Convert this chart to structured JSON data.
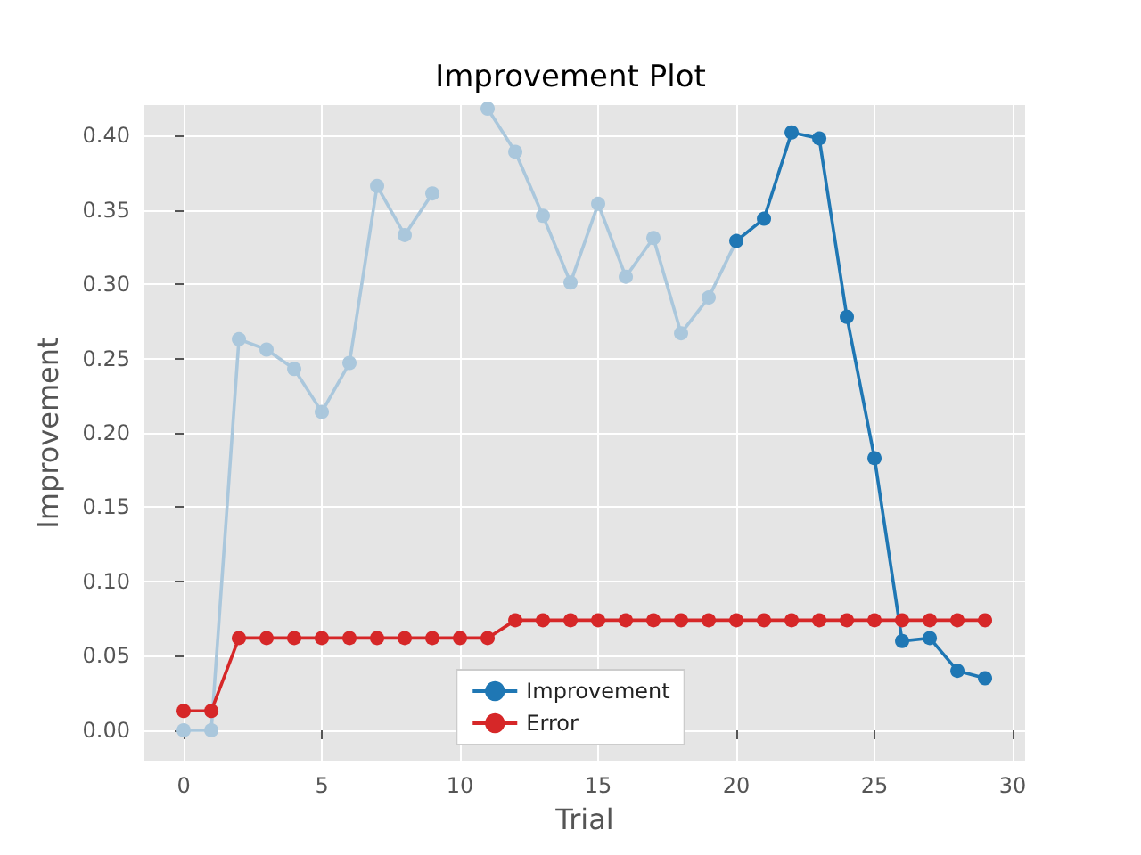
{
  "chart_data": {
    "type": "line",
    "title": "Improvement Plot",
    "xlabel": "Trial",
    "ylabel": "Improvement",
    "series": [
      {
        "color": "#aac7dc",
        "x": [
          0,
          1,
          2,
          3,
          4,
          5,
          6,
          7,
          8,
          9,
          10,
          11,
          12,
          13,
          14,
          15,
          16,
          17,
          18,
          19,
          20
        ],
        "values": [
          0.0,
          0.0,
          0.263,
          0.256,
          0.243,
          0.214,
          0.247,
          0.366,
          0.333,
          0.361,
          null,
          0.418,
          0.389,
          0.346,
          0.301,
          0.354,
          0.305,
          0.331,
          0.267,
          0.291,
          0.329
        ]
      },
      {
        "name": "Improvement",
        "color": "#1f77b4",
        "x": [
          20,
          21,
          22,
          23,
          24,
          25,
          26,
          27,
          28,
          29
        ],
        "values": [
          0.329,
          0.344,
          0.402,
          0.398,
          0.278,
          0.183,
          0.06,
          0.062,
          0.04,
          0.035
        ]
      },
      {
        "name": "Error",
        "color": "#d62728",
        "x": [
          0,
          1,
          2,
          3,
          4,
          5,
          6,
          7,
          8,
          9,
          10,
          11,
          12,
          13,
          14,
          15,
          16,
          17,
          18,
          19,
          20,
          21,
          22,
          23,
          24,
          25,
          26,
          27,
          28,
          29
        ],
        "values": [
          0.013,
          0.013,
          0.062,
          0.062,
          0.062,
          0.062,
          0.062,
          0.062,
          0.062,
          0.062,
          0.062,
          0.062,
          0.074,
          0.074,
          0.074,
          0.074,
          0.074,
          0.074,
          0.074,
          0.074,
          0.074,
          0.074,
          0.074,
          0.074,
          0.074,
          0.074,
          0.074,
          0.074,
          0.074,
          0.074
        ]
      }
    ],
    "xlim": [
      -1.42,
      30.45
    ],
    "xticks": [
      0,
      5,
      10,
      15,
      20,
      25,
      30
    ],
    "ylim": [
      -0.0204,
      0.4204
    ],
    "yticks": [
      {
        "value": 0,
        "label": "0.00"
      },
      {
        "value": 0.05,
        "label": "0.05"
      },
      {
        "value": 0.1,
        "label": "0.10"
      },
      {
        "value": 0.15,
        "label": "0.15"
      },
      {
        "value": 0.2,
        "label": "0.20"
      },
      {
        "value": 0.25,
        "label": "0.25"
      },
      {
        "value": 0.3,
        "label": "0.30"
      },
      {
        "value": 0.35,
        "label": "0.35"
      },
      {
        "value": 0.4,
        "label": "0.40"
      }
    ],
    "grid": true,
    "legend": "bottom",
    "marker": "circle",
    "line_style": "solid"
  }
}
